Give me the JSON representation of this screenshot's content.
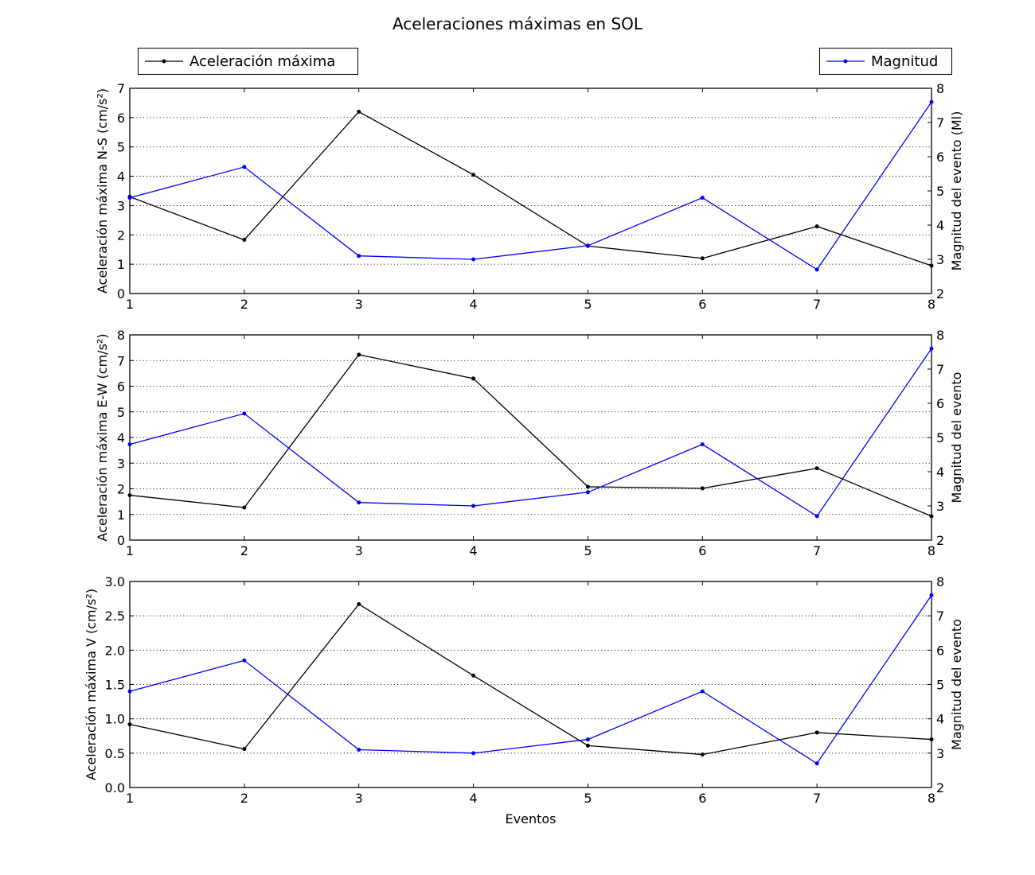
{
  "figure": {
    "title": "Aceleraciones máximas en SOL",
    "legend_left": "Aceleración máxima",
    "legend_right": "Magnitud",
    "xlabel": "Eventos"
  },
  "colors": {
    "acceleration": "#000000",
    "magnitude": "#0000ff",
    "grid": "#000000"
  },
  "chart_data": [
    {
      "type": "line",
      "x": [
        1,
        2,
        3,
        4,
        5,
        6,
        7,
        8
      ],
      "xlim": [
        1,
        8
      ],
      "ylabel": "Aceleración máxima N-S (cm/s²)",
      "ylim": [
        0,
        7
      ],
      "yticks": [
        "0",
        "1",
        "2",
        "3",
        "4",
        "5",
        "6",
        "7"
      ],
      "y2label": "Magnitud del evento (Ml)",
      "y2lim": [
        2,
        8
      ],
      "y2ticks": [
        "2",
        "3",
        "4",
        "5",
        "6",
        "7",
        "8"
      ],
      "grid": true,
      "series": [
        {
          "name": "Aceleración máxima",
          "axis": "left",
          "values": [
            3.3,
            1.83,
            6.2,
            4.05,
            1.62,
            1.2,
            2.29,
            0.95
          ]
        },
        {
          "name": "Magnitud",
          "axis": "right",
          "values": [
            4.8,
            5.7,
            3.1,
            3.0,
            3.4,
            4.8,
            2.7,
            7.6
          ]
        }
      ]
    },
    {
      "type": "line",
      "x": [
        1,
        2,
        3,
        4,
        5,
        6,
        7,
        8
      ],
      "xlim": [
        1,
        8
      ],
      "ylabel": "Aceleración máxima E-W (cm/s²)",
      "ylim": [
        0,
        8
      ],
      "yticks": [
        "0",
        "1",
        "2",
        "3",
        "4",
        "5",
        "6",
        "7",
        "8"
      ],
      "y2label": "Magnitud del evento",
      "y2lim": [
        2,
        8
      ],
      "y2ticks": [
        "2",
        "3",
        "4",
        "5",
        "6",
        "7",
        "8"
      ],
      "grid": true,
      "series": [
        {
          "name": "Aceleración máxima",
          "axis": "left",
          "values": [
            1.75,
            1.27,
            7.23,
            6.3,
            2.08,
            2.02,
            2.8,
            0.93
          ]
        },
        {
          "name": "Magnitud",
          "axis": "right",
          "values": [
            4.8,
            5.7,
            3.1,
            3.0,
            3.4,
            4.8,
            2.7,
            7.6
          ]
        }
      ]
    },
    {
      "type": "line",
      "x": [
        1,
        2,
        3,
        4,
        5,
        6,
        7,
        8
      ],
      "xlim": [
        1,
        8
      ],
      "xlabel": "Eventos",
      "ylabel": "Aceleración máxima V (cm/s²)",
      "ylim": [
        0,
        3
      ],
      "yticks": [
        "0.0",
        "0.5",
        "1.0",
        "1.5",
        "2.0",
        "2.5",
        "3.0"
      ],
      "y2label": "Magnitud del evento",
      "y2lim": [
        2,
        8
      ],
      "y2ticks": [
        "2",
        "3",
        "4",
        "5",
        "6",
        "7",
        "8"
      ],
      "grid": true,
      "series": [
        {
          "name": "Aceleración máxima",
          "axis": "left",
          "values": [
            0.92,
            0.56,
            2.67,
            1.63,
            0.61,
            0.48,
            0.8,
            0.7
          ]
        },
        {
          "name": "Magnitud",
          "axis": "right",
          "values": [
            4.8,
            5.7,
            3.1,
            3.0,
            3.4,
            4.8,
            2.7,
            7.6
          ]
        }
      ]
    }
  ]
}
